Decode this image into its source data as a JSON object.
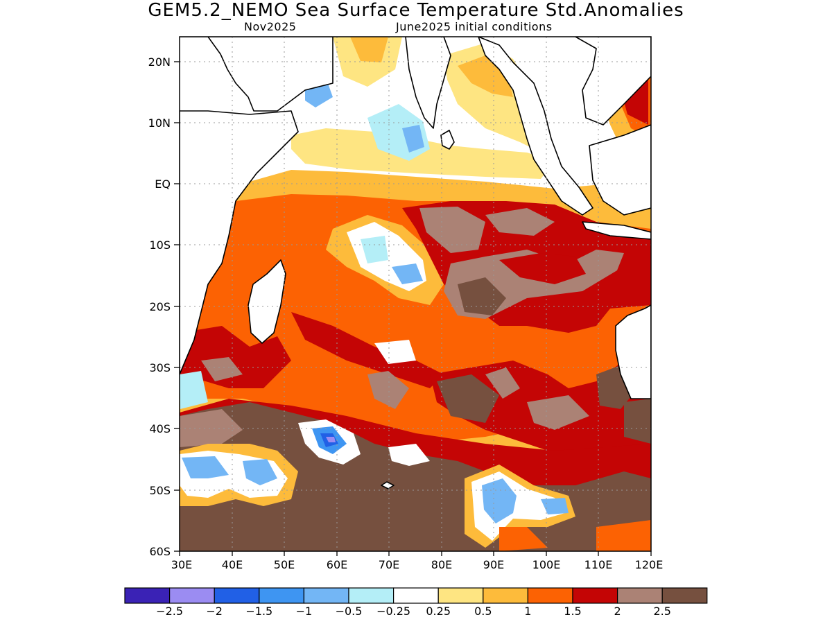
{
  "title": "GEM5.2_NEMO Sea Surface Temperature Std.Anomalies",
  "subtitle_left": "Nov2025",
  "subtitle_right": "June2025 initial conditions",
  "axes": {
    "lat_labels": [
      "20N",
      "10N",
      "EQ",
      "10S",
      "20S",
      "30S",
      "40S",
      "50S",
      "60S"
    ],
    "lon_labels": [
      "30E",
      "40E",
      "50E",
      "60E",
      "70E",
      "80E",
      "90E",
      "100E",
      "110E",
      "120E"
    ],
    "lat_range": [
      -60,
      24
    ],
    "lon_range": [
      30,
      120
    ],
    "grid": "dotted"
  },
  "colorbar": {
    "colors": [
      "#3a22b5",
      "#9b8cf2",
      "#2160e6",
      "#3e95f2",
      "#73b6f5",
      "#b4eef7",
      "#ffffff",
      "#fee582",
      "#fdbb3b",
      "#fc6203",
      "#c40505",
      "#ab8275",
      "#76503f"
    ],
    "labels": [
      "−2.5",
      "−2",
      "−1.5",
      "−1",
      "−0.5",
      "−0.25",
      "0.25",
      "0.5",
      "1",
      "1.5",
      "2",
      "2.5"
    ]
  }
}
